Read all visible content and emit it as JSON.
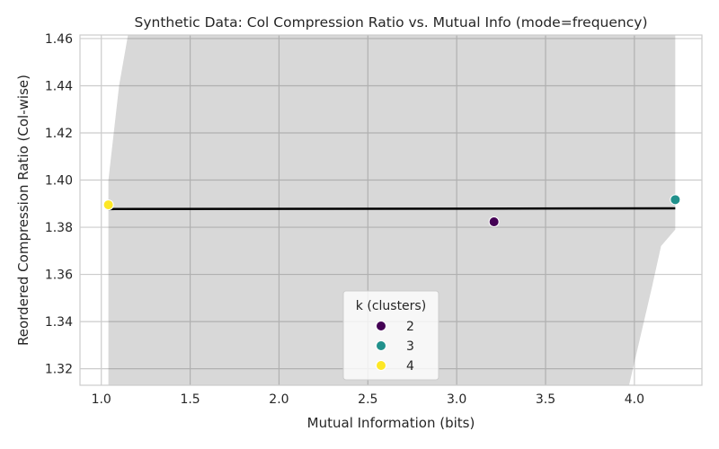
{
  "chart_data": {
    "type": "scatter",
    "title": "Synthetic Data: Col Compression Ratio vs. Mutual Info (mode=frequency)",
    "xlabel": "Mutual Information (bits)",
    "ylabel": "Reordered Compression Ratio (Col-wise)",
    "xlim": [
      0.88,
      4.38
    ],
    "ylim": [
      1.313,
      1.4615
    ],
    "xticks": [
      "1.0",
      "1.5",
      "2.0",
      "2.5",
      "3.0",
      "3.5",
      "4.0"
    ],
    "yticks": [
      "1.32",
      "1.34",
      "1.36",
      "1.38",
      "1.40",
      "1.42",
      "1.44",
      "1.46"
    ],
    "grid": true,
    "legend": {
      "title": "k (clusters)",
      "position": "bottom-center",
      "entries": [
        {
          "label": "2",
          "color": "#440154"
        },
        {
          "label": "3",
          "color": "#21918c"
        },
        {
          "label": "4",
          "color": "#fde725"
        }
      ]
    },
    "points": [
      {
        "x": 1.04,
        "y": 1.3895,
        "k": "4",
        "color": "#fde725"
      },
      {
        "x": 3.21,
        "y": 1.3823,
        "k": "2",
        "color": "#440154"
      },
      {
        "x": 4.23,
        "y": 1.3917,
        "k": "3",
        "color": "#21918c"
      }
    ],
    "regression": {
      "x": [
        1.04,
        4.23
      ],
      "y": [
        1.3877,
        1.388
      ],
      "color": "#000000"
    },
    "confidence_band": {
      "x": [
        1.04,
        1.1,
        1.15,
        1.3,
        1.6,
        2.0,
        2.5,
        3.0,
        3.5,
        3.7,
        3.9,
        3.97,
        4.1,
        4.15,
        4.23
      ],
      "upper": [
        1.4,
        1.44,
        1.4615,
        1.4615,
        1.4615,
        1.4615,
        1.4615,
        1.4615,
        1.4615,
        1.4615,
        1.4615,
        1.4615,
        1.4615,
        1.4615,
        1.4615
      ],
      "lower": [
        1.313,
        1.313,
        1.313,
        1.313,
        1.313,
        1.313,
        1.313,
        1.313,
        1.313,
        1.313,
        1.313,
        1.313,
        1.355,
        1.372,
        1.379
      ],
      "color": "#d8d8d8"
    }
  }
}
